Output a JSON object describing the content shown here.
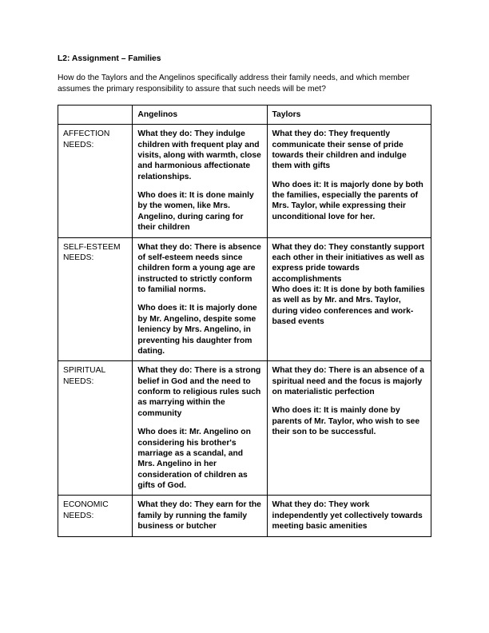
{
  "title": "L2: Assignment – Families",
  "intro": "How do the Taylors and the Angelinos specifically address their family needs, and which member assumes the primary responsibility to assure that such needs will be met?",
  "columns": {
    "blank": "",
    "col1": "Angelinos",
    "col2": "Taylors"
  },
  "rows": [
    {
      "label": "AFFECTION NEEDS:",
      "angelinos_do": "What they do: They indulge children with frequent play and visits, along with warmth, close and harmonious affectionate relationships.",
      "angelinos_who": "Who does it: It is done mainly by the women, like Mrs. Angelino, during caring for their children",
      "taylors_do": "What they do: They frequently communicate their sense of pride towards their children and indulge them with gifts",
      "taylors_who": "Who does it: It is majorly done by both the families, especially the parents of Mrs. Taylor, while expressing their unconditional love for her."
    },
    {
      "label": "SELF-ESTEEM NEEDS:",
      "angelinos_do": "What they do: There is absence of self-esteem needs since children form a young age are instructed to strictly conform to familial norms.",
      "angelinos_who": "Who does it: It is majorly done by Mr. Angelino, despite some leniency by Mrs. Angelino, in preventing his daughter from dating.",
      "taylors_do": "What they do: They constantly support each other in their initiatives as well as express pride towards accomplishments",
      "taylors_who": "Who does it: It is done by both families as well as by Mr. and Mrs. Taylor, during video conferences and work-based events"
    },
    {
      "label": "SPIRITUAL NEEDS:",
      "angelinos_do": "What they do: There is a strong belief in God and the need to conform to religious rules such as marrying within the community",
      "angelinos_who": "Who does it: Mr. Angelino on considering his brother's marriage as a scandal, and Mrs. Angelino in her consideration of children as gifts of God.",
      "taylors_do": "What they do: There is an absence of a spiritual need and the focus is majorly on materialistic perfection",
      "taylors_who": "Who does it: It is mainly done by parents of Mr. Taylor, who wish to see their son to be successful."
    },
    {
      "label": "ECONOMIC NEEDS:",
      "angelinos_do": "What they do: They earn for the family by running the family business or butcher",
      "angelinos_who": "",
      "taylors_do": "What they do: They work independently yet collectively towards meeting basic amenities",
      "taylors_who": ""
    }
  ],
  "colors": {
    "text": "#000000",
    "border": "#000000",
    "background": "#ffffff"
  },
  "font": {
    "family": "Arial",
    "title_size_pt": 10,
    "body_size_pt": 10
  }
}
